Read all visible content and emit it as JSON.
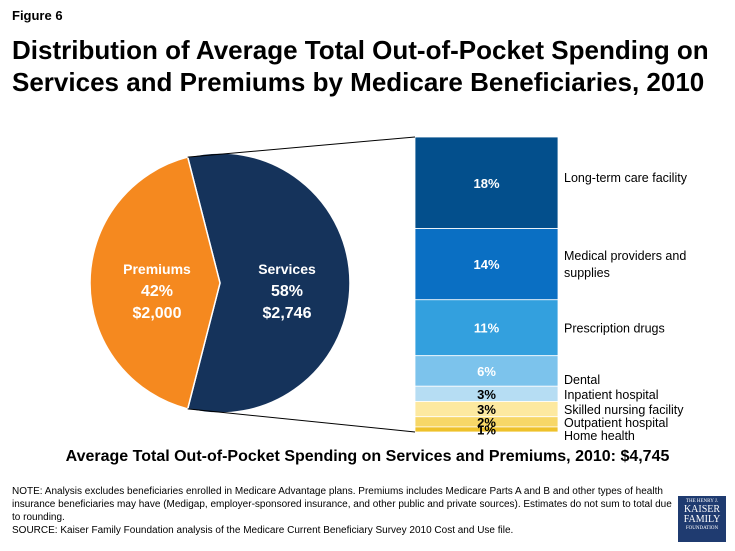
{
  "figure_label": "Figure 6",
  "chart_data": {
    "type": "pie",
    "title": "Distribution of Average Total Out-of-Pocket Spending on Services and Premiums by Medicare Beneficiaries, 2010",
    "subtitle": "Average Total Out-of-Pocket Spending on Services and Premiums, 2010:  $4,745",
    "total": 4745,
    "slices": [
      {
        "name": "Premiums",
        "percent": 42,
        "percent_label": "42%",
        "amount": 2000,
        "amount_label": "$2,000",
        "color": "#f5891f"
      },
      {
        "name": "Services",
        "percent": 58,
        "percent_label": "58%",
        "amount": 2746,
        "amount_label": "$2,746",
        "color": "#15335b"
      }
    ],
    "breakdown": {
      "of": "Services",
      "type": "stacked_bar",
      "segments": [
        {
          "label": "Long-term care facility",
          "value": 18,
          "value_label": "18%",
          "color": "#034f8c"
        },
        {
          "label": "Medical providers and supplies",
          "value": 14,
          "value_label": "14%",
          "color": "#0a6fc3"
        },
        {
          "label": "Prescription drugs",
          "value": 11,
          "value_label": "11%",
          "color": "#33a0de"
        },
        {
          "label": "Dental",
          "value": 6,
          "value_label": "6%",
          "color": "#7cc3ec"
        },
        {
          "label": "Inpatient hospital",
          "value": 3,
          "value_label": "3%",
          "color": "#b6ddf3"
        },
        {
          "label": "Skilled nursing facility",
          "value": 3,
          "value_label": "3%",
          "color": "#fde9a0"
        },
        {
          "label": "Outpatient hospital",
          "value": 2,
          "value_label": "2%",
          "color": "#f7d767"
        },
        {
          "label": "Home health",
          "value": 1,
          "value_label": "1%",
          "color": "#eec12a"
        }
      ]
    }
  },
  "notes": {
    "note": "NOTE: Analysis excludes beneficiaries enrolled in Medicare Advantage plans. Premiums includes Medicare Parts A and B and other types of health insurance beneficiaries may have (Medigap, employer-sponsored insurance, and other public and private sources). Estimates do not sum to total due to rounding.",
    "source": "SOURCE: Kaiser Family Foundation analysis of the Medicare Current Beneficiary Survey 2010 Cost and Use file."
  },
  "logo": {
    "line1": "THE HENRY J.",
    "line2": "KAISER",
    "line3": "FAMILY",
    "line4": "FOUNDATION"
  }
}
